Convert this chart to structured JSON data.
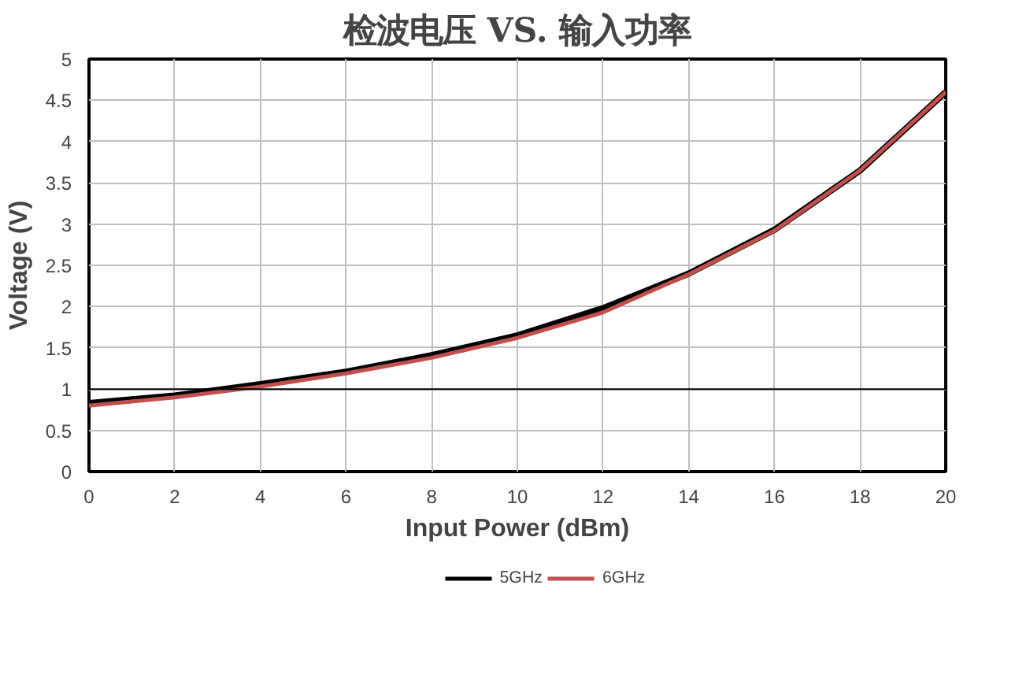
{
  "chart_data": {
    "type": "line",
    "title": "检波电压 VS. 输入功率",
    "xlabel": "Input Power (dBm)",
    "ylabel": "Voltage (V)",
    "x": [
      0,
      2,
      4,
      6,
      8,
      10,
      12,
      14,
      16,
      18,
      20
    ],
    "series": [
      {
        "name": "5GHz",
        "color": "#000000",
        "values": [
          0.83,
          0.92,
          1.06,
          1.21,
          1.41,
          1.65,
          1.98,
          2.4,
          2.93,
          3.65,
          4.6
        ]
      },
      {
        "name": "6GHz",
        "color": "#c0504d",
        "values": [
          0.8,
          0.9,
          1.03,
          1.19,
          1.38,
          1.62,
          1.93,
          2.39,
          2.92,
          3.65,
          4.6
        ]
      }
    ],
    "xlim": [
      0,
      20
    ],
    "xticks": [
      0,
      2,
      4,
      6,
      8,
      10,
      12,
      14,
      16,
      18,
      20
    ],
    "ylim": [
      0,
      5
    ],
    "yticks": [
      0,
      0.5,
      1,
      1.5,
      2,
      2.5,
      3,
      3.5,
      4,
      4.5,
      5
    ],
    "ref_lines": [
      {
        "axis": "y",
        "value": 1,
        "color": "#000000"
      }
    ],
    "grid": true,
    "legend": "bottom",
    "marker": "none",
    "line_style": "solid"
  }
}
